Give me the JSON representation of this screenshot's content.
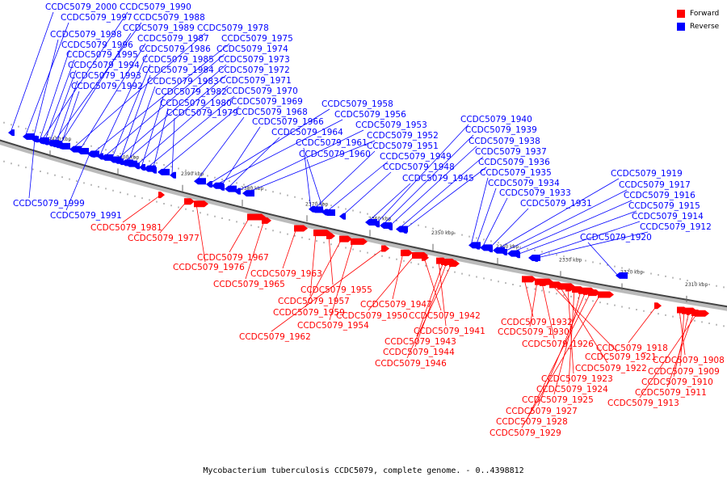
{
  "legend": {
    "forward_label": "Forward",
    "reverse_label": "Reverse",
    "forward_color": "#ff0000",
    "reverse_color": "#0000ff"
  },
  "caption": "Mycobacterium tuberculosis CCDC5079, complete genome. - 0..4398812",
  "scale_labels": [
    "2410 kbp",
    "2400 kbp",
    "2390 kbp",
    "2380 kbp",
    "2370 kbp",
    "2360 kbp",
    "2350 kbp",
    "2340 kbp",
    "2330 kbp",
    "2320 kbp",
    "2310 kbp"
  ],
  "reverse_genes": [
    "CCDC5079_2000",
    "CCDC5079_1997",
    "CCDC5079_1990",
    "CCDC5079_1988",
    "CCDC5079_1989",
    "CCDC5079_1978",
    "CCDC5079_1998",
    "CCDC5079_1987",
    "CCDC5079_1975",
    "CCDC5079_1996",
    "CCDC5079_1986",
    "CCDC5079_1974",
    "CCDC5079_1995",
    "CCDC5079_1985",
    "CCDC5079_1973",
    "CCDC5079_1994",
    "CCDC5079_1984",
    "CCDC5079_1972",
    "CCDC5079_1993",
    "CCDC5079_1983",
    "CCDC5079_1971",
    "CCDC5079_1992",
    "CCDC5079_1982",
    "CCDC5079_1970",
    "CCDC5079_1980",
    "CCDC5079_1969",
    "CCDC5079_1979",
    "CCDC5079_1968",
    "CCDC5079_1958",
    "CCDC5079_1956",
    "CCDC5079_1966",
    "CCDC5079_1964",
    "CCDC5079_1953",
    "CCDC5079_1952",
    "CCDC5079_1961",
    "CCDC5079_1951",
    "CCDC5079_1960",
    "CCDC5079_1949",
    "CCDC5079_1948",
    "CCDC5079_1945",
    "CCDC5079_1940",
    "CCDC5079_1939",
    "CCDC5079_1938",
    "CCDC5079_1937",
    "CCDC5079_1936",
    "CCDC5079_1935",
    "CCDC5079_1934",
    "CCDC5079_1933",
    "CCDC5079_1931",
    "CCDC5079_1919",
    "CCDC5079_1917",
    "CCDC5079_1916",
    "CCDC5079_1915",
    "CCDC5079_1914",
    "CCDC5079_1912",
    "CCDC5079_1920",
    "CCDC5079_1999",
    "CCDC5079_1991"
  ],
  "forward_genes": [
    "CCDC5079_1981",
    "CCDC5079_1977",
    "CCDC5079_1976",
    "CCDC5079_1967",
    "CCDC5079_1965",
    "CCDC5079_1963",
    "CCDC5079_1957",
    "CCDC5079_1955",
    "CCDC5079_1959",
    "CCDC5079_1954",
    "CCDC5079_1962",
    "CCDC5079_1947",
    "CCDC5079_1950",
    "CCDC5079_1942",
    "CCDC5079_1941",
    "CCDC5079_1943",
    "CCDC5079_1944",
    "CCDC5079_1946",
    "CCDC5079_1932",
    "CCDC5079_1930",
    "CCDC5079_1926",
    "CCDC5079_1921",
    "CCDC5079_1922",
    "CCDC5079_1923",
    "CCDC5079_1924",
    "CCDC5079_1925",
    "CCDC5079_1927",
    "CCDC5079_1928",
    "CCDC5079_1929",
    "CCDC5079_1918",
    "CCDC5079_1908",
    "CCDC5079_1909",
    "CCDC5079_1910",
    "CCDC5079_1911",
    "CCDC5079_1913"
  ]
}
